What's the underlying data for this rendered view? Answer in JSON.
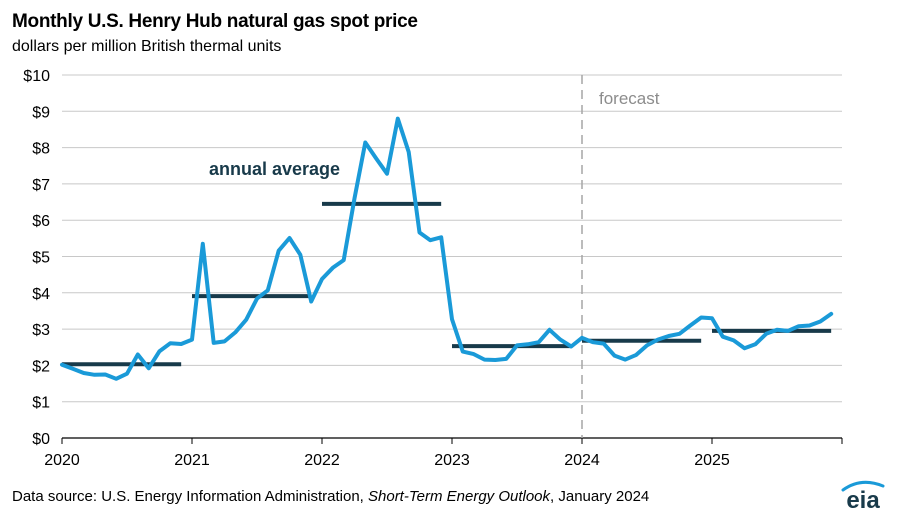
{
  "header": {
    "title": "Monthly U.S. Henry Hub natural gas spot price",
    "subtitle": "dollars per million British thermal units"
  },
  "footer": {
    "source_prefix": "Data source: U.S. Energy Information Administration, ",
    "source_publication": "Short-Term Energy Outlook",
    "source_suffix": ", January 2024",
    "logo_text": "eia"
  },
  "colors": {
    "monthly_line": "#1a9ad8",
    "annual_average": "#183a4a",
    "grid": "#c8c8c8",
    "forecast_divider": "#a6a6a6",
    "forecast_label": "#8c8c8c"
  },
  "chart_data": {
    "type": "line",
    "title": "Monthly U.S. Henry Hub natural gas spot price",
    "ylabel": "dollars per million British thermal units",
    "ylim": [
      0,
      10
    ],
    "y_ticks": [
      "$0",
      "$1",
      "$2",
      "$3",
      "$4",
      "$5",
      "$6",
      "$7",
      "$8",
      "$9",
      "$10"
    ],
    "x_ticks": [
      "2020",
      "2021",
      "2022",
      "2023",
      "2024",
      "2025"
    ],
    "xlim": [
      "2020-01",
      "2025-12"
    ],
    "grid": true,
    "forecast_start": "2024-01",
    "forecast_label": "forecast",
    "series": [
      {
        "values": [
          2.02,
          1.91,
          1.79,
          1.74,
          1.75,
          1.63,
          1.77,
          2.3,
          1.92,
          2.39,
          2.61,
          2.59,
          2.71,
          5.35,
          2.62,
          2.66,
          2.91,
          3.26,
          3.84,
          4.07,
          5.16,
          5.51,
          5.05,
          3.76,
          4.38,
          4.69,
          4.9,
          6.6,
          8.14,
          7.7,
          7.28,
          8.8,
          7.88,
          5.66,
          5.45,
          5.53,
          3.27,
          2.38,
          2.31,
          2.16,
          2.15,
          2.18,
          2.55,
          2.58,
          2.64,
          2.98,
          2.71,
          2.52,
          2.76,
          2.64,
          2.6,
          2.27,
          2.16,
          2.29,
          2.55,
          2.71,
          2.81,
          2.87,
          3.1,
          3.32,
          3.3,
          2.79,
          2.69,
          2.47,
          2.58,
          2.87,
          2.98,
          2.95,
          3.08,
          3.1,
          3.21,
          3.42
        ]
      }
    ],
    "annual_average": {
      "label": "annual average",
      "years": [
        "2020",
        "2021",
        "2022",
        "2023",
        "2024",
        "2025"
      ],
      "values": [
        2.03,
        3.91,
        6.45,
        2.53,
        2.68,
        2.95
      ]
    }
  }
}
